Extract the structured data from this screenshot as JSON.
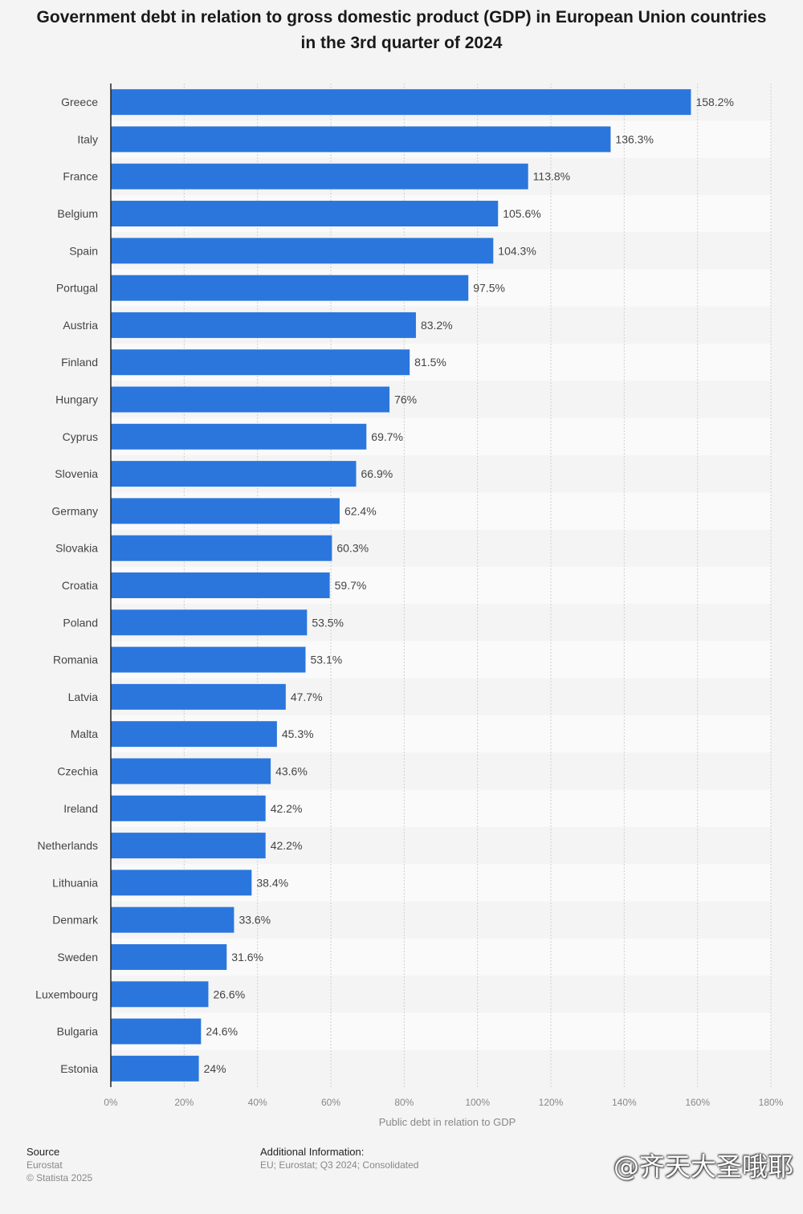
{
  "title": "Government debt in relation to gross domestic product (GDP) in European Union countries in the 3rd quarter of 2024",
  "chart_data": {
    "type": "bar",
    "orientation": "horizontal",
    "title": "Government debt in relation to gross domestic product (GDP) in European Union countries in the 3rd quarter of 2024",
    "xlabel": "Public debt in relation to GDP",
    "ylabel": "",
    "xlim": [
      0,
      180
    ],
    "x_ticks": [
      "0%",
      "20%",
      "40%",
      "60%",
      "80%",
      "100%",
      "120%",
      "140%",
      "160%",
      "180%"
    ],
    "grid": true,
    "bar_color": "#2a76dd",
    "categories": [
      "Greece",
      "Italy",
      "France",
      "Belgium",
      "Spain",
      "Portugal",
      "Austria",
      "Finland",
      "Hungary",
      "Cyprus",
      "Slovenia",
      "Germany",
      "Slovakia",
      "Croatia",
      "Poland",
      "Romania",
      "Latvia",
      "Malta",
      "Czechia",
      "Ireland",
      "Netherlands",
      "Lithuania",
      "Denmark",
      "Sweden",
      "Luxembourg",
      "Bulgaria",
      "Estonia"
    ],
    "values": [
      158.2,
      136.3,
      113.8,
      105.6,
      104.3,
      97.5,
      83.2,
      81.5,
      76,
      69.7,
      66.9,
      62.4,
      60.3,
      59.7,
      53.5,
      53.1,
      47.7,
      45.3,
      43.6,
      42.2,
      42.2,
      38.4,
      33.6,
      31.6,
      26.6,
      24.6,
      24
    ],
    "value_labels": [
      "158.2%",
      "136.3%",
      "113.8%",
      "105.6%",
      "104.3%",
      "97.5%",
      "83.2%",
      "81.5%",
      "76%",
      "69.7%",
      "66.9%",
      "62.4%",
      "60.3%",
      "59.7%",
      "53.5%",
      "53.1%",
      "47.7%",
      "45.3%",
      "43.6%",
      "42.2%",
      "42.2%",
      "38.4%",
      "33.6%",
      "31.6%",
      "26.6%",
      "24.6%",
      "24%"
    ]
  },
  "footer": {
    "source_heading": "Source",
    "source_lines": [
      "Eurostat",
      "© Statista 2025"
    ],
    "info_heading": "Additional Information:",
    "info_line": "EU; Eurostat; Q3 2024; Consolidated"
  },
  "watermark": "@齐天大圣哦耶"
}
